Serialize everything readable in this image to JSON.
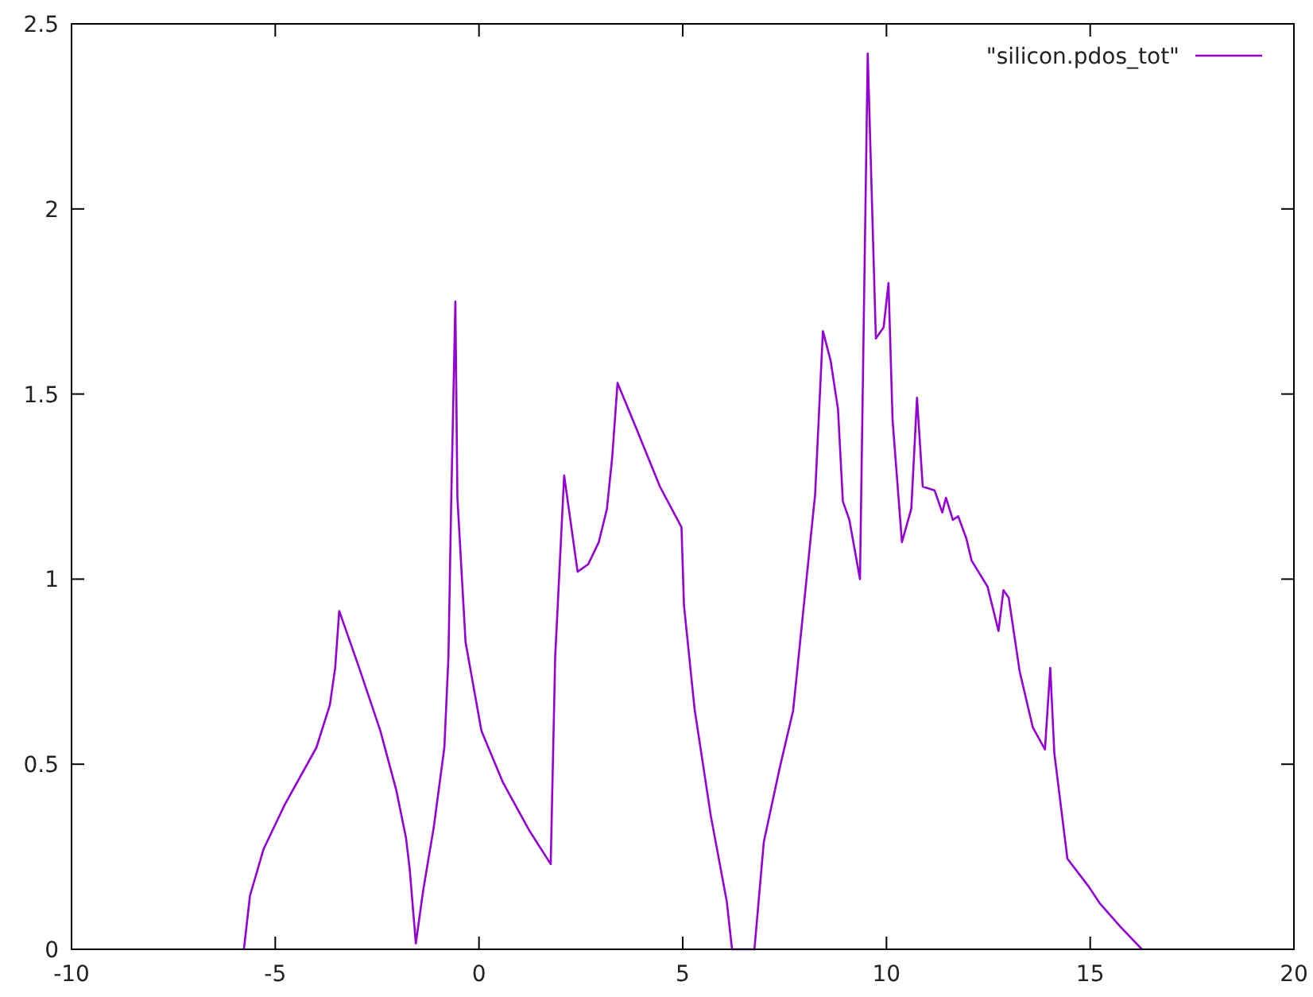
{
  "chart_data": {
    "type": "line",
    "legend": "top right",
    "grid": false,
    "line_style": "solid",
    "xlim": [
      -10,
      20
    ],
    "xticks": [
      -10,
      -5,
      0,
      5,
      10,
      15,
      20
    ],
    "ylim": [
      0,
      2.5
    ],
    "yticks": [
      0,
      0.5,
      1,
      1.5,
      2,
      2.5
    ],
    "series": [
      {
        "name": "\"silicon.pdos_tot\"",
        "color": "#9400d3",
        "x": [
          -5.77,
          -5.62,
          -5.29,
          -4.77,
          -3.99,
          -3.66,
          -3.53,
          -3.43,
          -2.94,
          -2.42,
          -2.03,
          -1.79,
          -1.7,
          -1.55,
          -1.37,
          -1.11,
          -0.85,
          -0.75,
          -0.68,
          -0.58,
          -0.53,
          -0.33,
          0.06,
          0.59,
          1.24,
          1.76,
          1.87,
          2.09,
          2.42,
          2.68,
          2.94,
          3.14,
          3.27,
          3.4,
          3.85,
          4.44,
          4.97,
          5.03,
          5.29,
          5.69,
          6.08,
          6.21,
          6.76,
          6.99,
          7.38,
          7.71,
          8.25,
          8.44,
          8.63,
          8.81,
          8.93,
          9.09,
          9.35,
          9.54,
          9.74,
          9.93,
          10.05,
          10.15,
          10.38,
          10.61,
          10.75,
          10.89,
          11.18,
          11.37,
          11.46,
          11.63,
          11.76,
          11.96,
          12.09,
          12.48,
          12.75,
          12.87,
          13.0,
          13.27,
          13.59,
          13.89,
          14.02,
          14.12,
          14.44,
          14.96,
          15.23,
          15.75,
          16.27
        ],
        "values": [
          0,
          0.145,
          0.27,
          0.39,
          0.545,
          0.66,
          0.76,
          0.914,
          0.76,
          0.59,
          0.43,
          0.3,
          0.216,
          0.016,
          0.159,
          0.33,
          0.545,
          0.79,
          1.22,
          1.75,
          1.22,
          0.83,
          0.59,
          0.45,
          0.32,
          0.23,
          0.79,
          1.28,
          1.02,
          1.04,
          1.1,
          1.19,
          1.33,
          1.53,
          1.41,
          1.25,
          1.14,
          0.93,
          0.65,
          0.36,
          0.13,
          0,
          0,
          0.29,
          0.49,
          0.645,
          1.23,
          1.67,
          1.59,
          1.46,
          1.21,
          1.16,
          1.0,
          2.42,
          1.65,
          1.68,
          1.8,
          1.43,
          1.1,
          1.19,
          1.49,
          1.25,
          1.24,
          1.18,
          1.22,
          1.16,
          1.17,
          1.11,
          1.05,
          0.98,
          0.86,
          0.97,
          0.95,
          0.75,
          0.6,
          0.54,
          0.76,
          0.53,
          0.245,
          0.17,
          0.125,
          0.06,
          0
        ]
      }
    ]
  }
}
